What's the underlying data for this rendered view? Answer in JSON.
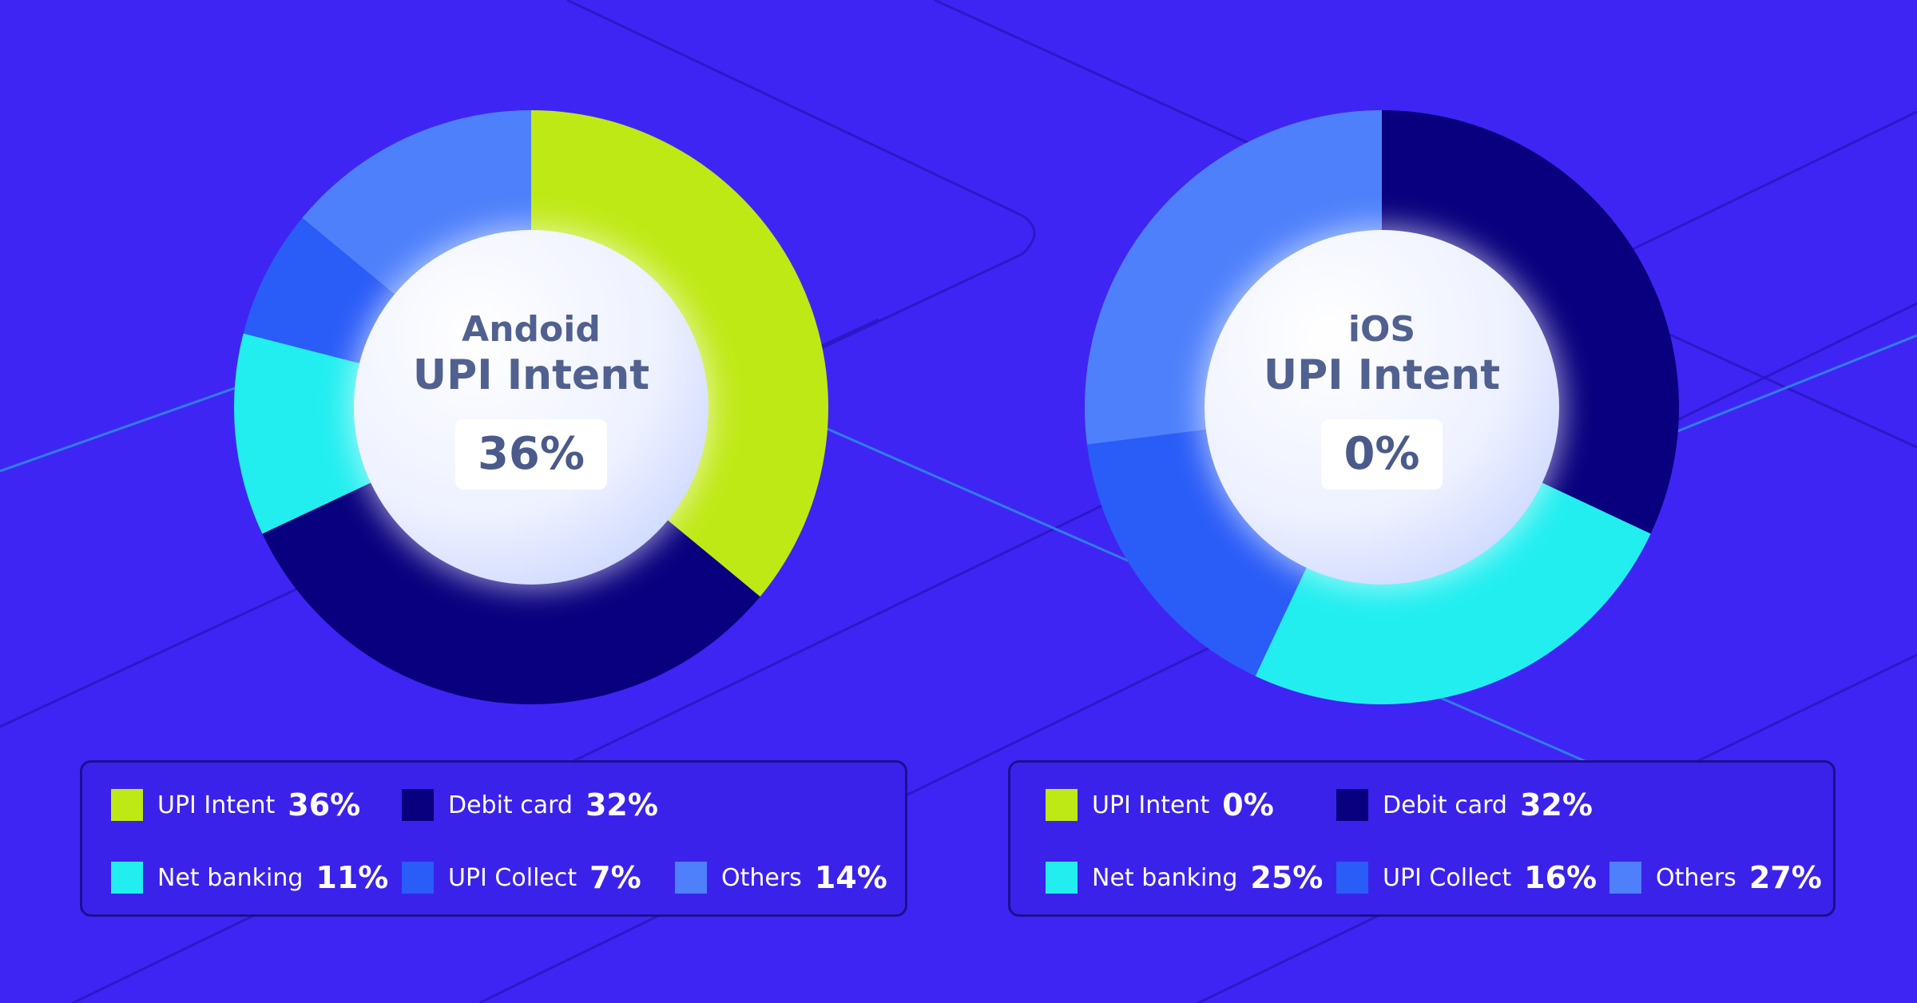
{
  "colors": {
    "background": "#3f25f3",
    "upi_intent": "#bfe915",
    "debit_card": "#08007e",
    "net_banking": "#22eef0",
    "upi_collect": "#2a5cf7",
    "others": "#4e80fb"
  },
  "chart_data": [
    {
      "type": "pie",
      "platform": "Andoid",
      "center_label": "UPI Intent",
      "center_value": "36%",
      "slices": [
        {
          "name": "UPI Intent",
          "value": 36,
          "label": "36%",
          "color": "#bfe915"
        },
        {
          "name": "Debit card",
          "value": 32,
          "label": "32%",
          "color": "#08007e"
        },
        {
          "name": "Net banking",
          "value": 11,
          "label": "11%",
          "color": "#22eef0"
        },
        {
          "name": "UPI Collect",
          "value": 7,
          "label": "7%",
          "color": "#2a5cf7"
        },
        {
          "name": "Others",
          "value": 14,
          "label": "14%",
          "color": "#4e80fb"
        }
      ]
    },
    {
      "type": "pie",
      "platform": "iOS",
      "center_label": "UPI Intent",
      "center_value": "0%",
      "slices": [
        {
          "name": "UPI Intent",
          "value": 0,
          "label": "0%",
          "color": "#bfe915"
        },
        {
          "name": "Debit card",
          "value": 32,
          "label": "32%",
          "color": "#08007e"
        },
        {
          "name": "Net banking",
          "value": 25,
          "label": "25%",
          "color": "#22eef0"
        },
        {
          "name": "UPI Collect",
          "value": 16,
          "label": "16%",
          "color": "#2a5cf7"
        },
        {
          "name": "Others",
          "value": 27,
          "label": "27%",
          "color": "#4e80fb"
        }
      ]
    }
  ]
}
